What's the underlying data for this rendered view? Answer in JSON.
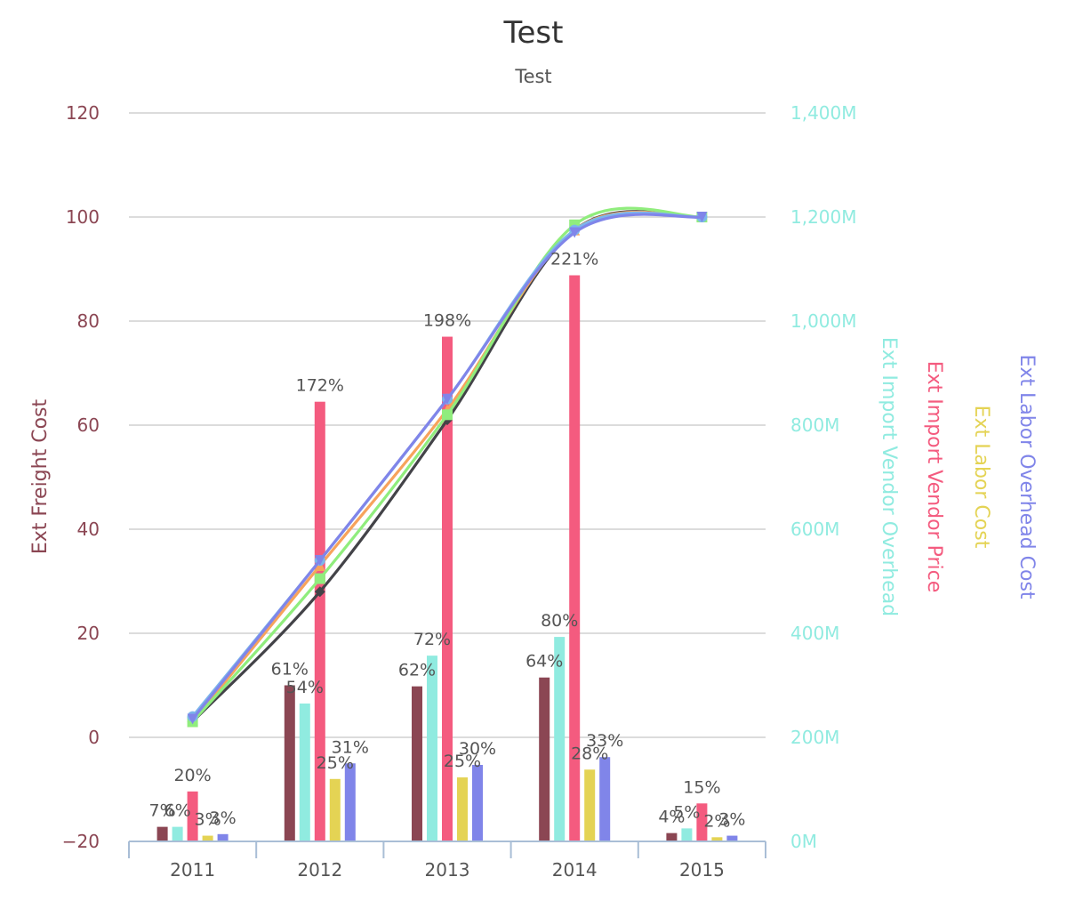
{
  "chart_data": {
    "type": "bar",
    "title": "Test",
    "subtitle": "Test",
    "categories": [
      "2011",
      "2012",
      "2013",
      "2014",
      "2015"
    ],
    "left_axis": {
      "title": "Ext Freight Cost",
      "color": "#8b4653",
      "ticks": [
        "120",
        "100",
        "80",
        "60",
        "40",
        "20",
        "0",
        "−20"
      ],
      "range": [
        -20,
        120
      ]
    },
    "right_axis": {
      "color": "#90ebe0",
      "ticks": [
        "1,400M",
        "1,200M",
        "1,000M",
        "800M",
        "600M",
        "400M",
        "200M",
        "0M"
      ],
      "range": [
        0,
        1400
      ],
      "titles": [
        {
          "text": "Ext Import Vendor Overhead",
          "color": "#90ebe0"
        },
        {
          "text": "Ext Import Vendor Price",
          "color": "#f45b7f"
        },
        {
          "text": "Ext Labor Cost",
          "color": "#e4d354"
        },
        {
          "text": "Ext Labor Overhead Cost",
          "color": "#8085e9"
        }
      ]
    },
    "series": [
      {
        "color": "#8b4653",
        "values": [
          28,
          300,
          298,
          315,
          16
        ],
        "labels": [
          "7%",
          "61%",
          "62%",
          "64%",
          "4%"
        ]
      },
      {
        "color": "#90ebe0",
        "values": [
          28,
          265,
          357,
          393,
          25
        ],
        "labels": [
          "6%",
          "54%",
          "72%",
          "80%",
          "5%"
        ]
      },
      {
        "color": "#f45b7f",
        "values": [
          96,
          845,
          970,
          1088,
          73
        ],
        "labels": [
          "20%",
          "172%",
          "198%",
          "221%",
          "15%"
        ]
      },
      {
        "color": "#e4d354",
        "values": [
          11,
          120,
          123,
          138,
          8
        ],
        "labels": [
          "3%",
          "25%",
          "25%",
          "28%",
          "2%"
        ]
      },
      {
        "color": "#8085e9",
        "values": [
          14,
          150,
          147,
          162,
          11
        ],
        "labels": [
          "3%",
          "31%",
          "30%",
          "33%",
          "3%"
        ]
      }
    ],
    "lines": [
      {
        "color": "#434348",
        "marker": "diamond",
        "values": [
          3,
          28,
          61,
          97.5,
          100
        ]
      },
      {
        "color": "#f7a35c",
        "marker": "triangle",
        "values": [
          3,
          33,
          63,
          97.5,
          100
        ]
      },
      {
        "color": "#90ed7d",
        "marker": "square",
        "values": [
          3,
          30.5,
          62,
          98.5,
          100
        ]
      },
      {
        "color": "#7cb5ec",
        "marker": "circle",
        "values": [
          4,
          34,
          65,
          97.5,
          100
        ]
      },
      {
        "color": "#8085e9",
        "marker": "triangle-down",
        "values": [
          3.5,
          34,
          65,
          97,
          100
        ]
      }
    ],
    "grid": true,
    "legend": "none"
  }
}
